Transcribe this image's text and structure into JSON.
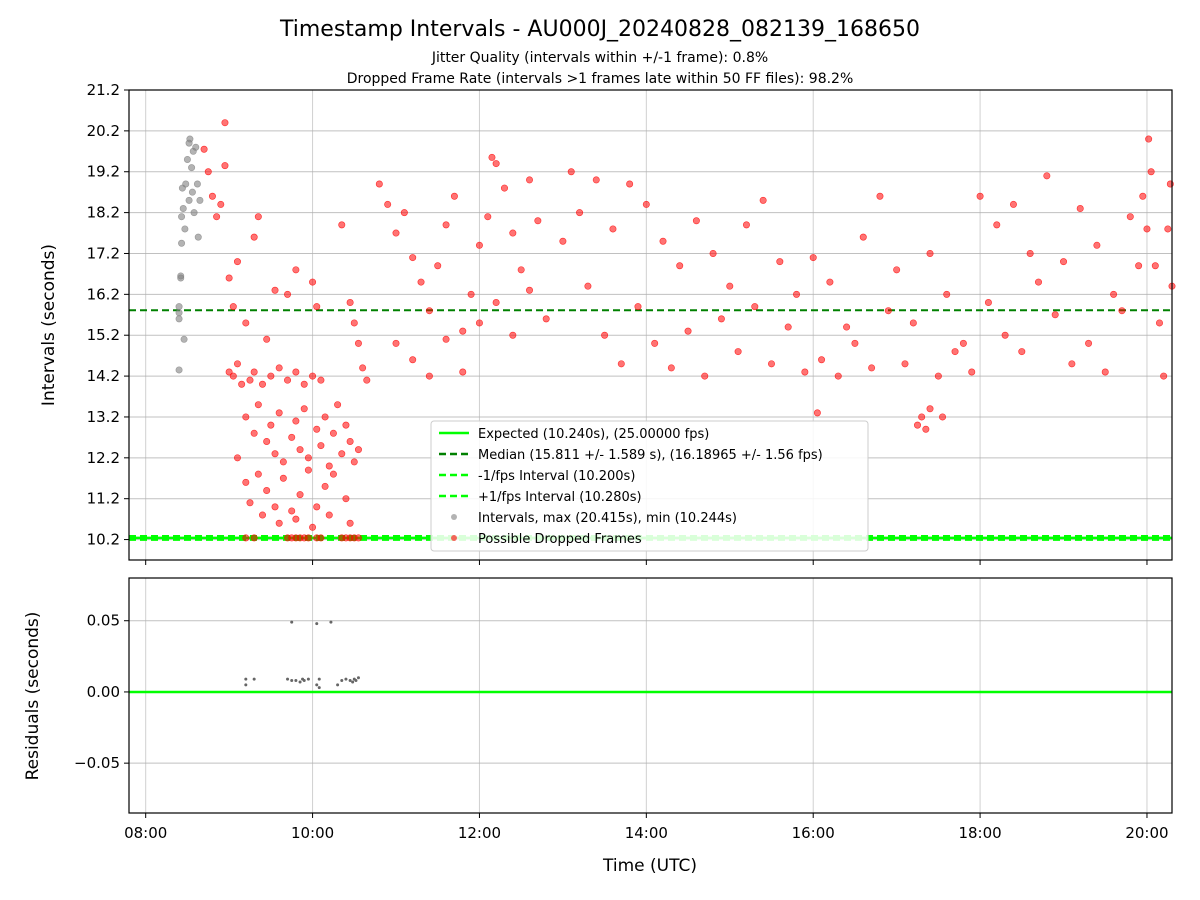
{
  "colors": {
    "expected": "#00ff00",
    "median": "#008000",
    "fps_bounds": "#00ff00",
    "intervals": "#808080",
    "dropped": "#ff0000",
    "grid": "#b0b0b0",
    "residual_points": "#666666"
  },
  "chart_data": [
    {
      "type": "scatter",
      "title": "Timestamp Intervals - AU000J_20240828_082139_168650",
      "subtitle_1": "Jitter Quality (intervals within +/-1 frame): 0.8%",
      "subtitle_2": "Dropped Frame Rate (intervals >1 frames late within 50 FF files): 98.2%",
      "xlabel": "",
      "ylabel": "Intervals (seconds)",
      "xlim_hours": [
        7.8,
        20.3
      ],
      "ylim": [
        9.7,
        21.2
      ],
      "y_ticks": [
        "10.2",
        "11.2",
        "12.2",
        "13.2",
        "14.2",
        "15.2",
        "16.2",
        "17.2",
        "18.2",
        "19.2",
        "20.2",
        "21.2"
      ],
      "grid": true,
      "legend_position": "lower-center",
      "legend": [
        "Expected (10.240s), (25.00000 fps)",
        "Median (15.811 +/- 1.589 s), (16.18965 +/- 1.56 fps)",
        "-1/fps Interval (10.200s)",
        "+1/fps Interval (10.280s)",
        "Intervals, max (20.415s), min (10.244s)",
        "Possible Dropped Frames"
      ],
      "lines": {
        "expected": 10.24,
        "median": 15.811,
        "minus_fps": 10.2,
        "plus_fps": 10.28
      },
      "series": [
        {
          "name": "Intervals, max (20.415s), min (10.244s)",
          "points": [
            [
              8.4,
              14.35
            ],
            [
              8.4,
              15.6
            ],
            [
              8.4,
              15.75
            ],
            [
              8.4,
              15.9
            ],
            [
              8.42,
              16.6
            ],
            [
              8.42,
              16.65
            ],
            [
              8.43,
              17.45
            ],
            [
              8.43,
              18.1
            ],
            [
              8.44,
              18.8
            ],
            [
              8.45,
              18.3
            ],
            [
              8.46,
              15.1
            ],
            [
              8.47,
              17.8
            ],
            [
              8.48,
              18.9
            ],
            [
              8.5,
              19.5
            ],
            [
              8.52,
              19.9
            ],
            [
              8.52,
              18.5
            ],
            [
              8.53,
              20.0
            ],
            [
              8.55,
              19.3
            ],
            [
              8.56,
              18.7
            ],
            [
              8.57,
              19.7
            ],
            [
              8.58,
              18.2
            ],
            [
              8.6,
              19.8
            ],
            [
              8.62,
              18.9
            ],
            [
              8.63,
              17.6
            ],
            [
              8.65,
              18.5
            ]
          ]
        },
        {
          "name": "Possible Dropped Frames",
          "points": [
            [
              8.95,
              20.4
            ],
            [
              8.7,
              19.75
            ],
            [
              8.75,
              19.2
            ],
            [
              8.8,
              18.6
            ],
            [
              8.85,
              18.1
            ],
            [
              8.9,
              18.4
            ],
            [
              8.95,
              19.35
            ],
            [
              9.0,
              16.6
            ],
            [
              9.05,
              15.9
            ],
            [
              9.1,
              17.0
            ],
            [
              9.2,
              15.5
            ],
            [
              9.3,
              17.6
            ],
            [
              9.35,
              18.1
            ],
            [
              9.45,
              15.1
            ],
            [
              9.55,
              16.3
            ],
            [
              9.7,
              16.2
            ],
            [
              9.8,
              16.8
            ],
            [
              10.0,
              16.5
            ],
            [
              10.05,
              15.9
            ],
            [
              10.35,
              17.9
            ],
            [
              10.45,
              16.0
            ],
            [
              10.5,
              15.5
            ],
            [
              10.55,
              15.0
            ],
            [
              10.6,
              14.4
            ],
            [
              10.65,
              14.1
            ],
            [
              9.0,
              14.3
            ],
            [
              9.05,
              14.2
            ],
            [
              9.1,
              14.5
            ],
            [
              9.15,
              14.0
            ],
            [
              9.25,
              14.1
            ],
            [
              9.3,
              14.3
            ],
            [
              9.4,
              14.0
            ],
            [
              9.5,
              14.2
            ],
            [
              9.6,
              14.4
            ],
            [
              9.7,
              14.1
            ],
            [
              9.8,
              14.3
            ],
            [
              9.9,
              14.0
            ],
            [
              10.0,
              14.2
            ],
            [
              10.1,
              14.1
            ],
            [
              9.2,
              13.2
            ],
            [
              9.3,
              12.8
            ],
            [
              9.35,
              13.5
            ],
            [
              9.45,
              12.6
            ],
            [
              9.5,
              13.0
            ],
            [
              9.55,
              12.3
            ],
            [
              9.6,
              13.3
            ],
            [
              9.65,
              12.1
            ],
            [
              9.75,
              12.7
            ],
            [
              9.8,
              13.1
            ],
            [
              9.85,
              12.4
            ],
            [
              9.9,
              13.4
            ],
            [
              9.95,
              12.2
            ],
            [
              10.05,
              12.9
            ],
            [
              10.1,
              12.5
            ],
            [
              10.15,
              13.2
            ],
            [
              10.2,
              12.0
            ],
            [
              10.25,
              12.8
            ],
            [
              10.3,
              13.5
            ],
            [
              10.35,
              12.3
            ],
            [
              10.4,
              13.0
            ],
            [
              10.45,
              12.6
            ],
            [
              10.5,
              12.1
            ],
            [
              10.55,
              12.4
            ],
            [
              9.1,
              12.2
            ],
            [
              9.2,
              11.6
            ],
            [
              9.25,
              11.1
            ],
            [
              9.35,
              11.8
            ],
            [
              9.45,
              11.4
            ],
            [
              9.55,
              11.0
            ],
            [
              9.65,
              11.7
            ],
            [
              9.75,
              10.9
            ],
            [
              9.85,
              11.3
            ],
            [
              9.95,
              11.9
            ],
            [
              10.05,
              11.0
            ],
            [
              10.15,
              11.5
            ],
            [
              10.25,
              11.8
            ],
            [
              10.4,
              11.2
            ],
            [
              9.4,
              10.8
            ],
            [
              9.6,
              10.6
            ],
            [
              9.8,
              10.7
            ],
            [
              10.0,
              10.5
            ],
            [
              10.2,
              10.8
            ],
            [
              10.45,
              10.6
            ],
            [
              9.2,
              10.24
            ],
            [
              9.3,
              10.24
            ],
            [
              9.7,
              10.24
            ],
            [
              9.75,
              10.24
            ],
            [
              9.8,
              10.24
            ],
            [
              9.85,
              10.24
            ],
            [
              9.9,
              10.24
            ],
            [
              9.95,
              10.24
            ],
            [
              10.05,
              10.24
            ],
            [
              10.1,
              10.24
            ],
            [
              10.35,
              10.24
            ],
            [
              10.4,
              10.24
            ],
            [
              10.45,
              10.24
            ],
            [
              10.5,
              10.24
            ],
            [
              10.55,
              10.24
            ],
            [
              10.8,
              18.9
            ],
            [
              10.9,
              18.4
            ],
            [
              11.0,
              17.7
            ],
            [
              11.1,
              18.2
            ],
            [
              11.2,
              17.1
            ],
            [
              11.3,
              16.5
            ],
            [
              11.4,
              15.8
            ],
            [
              11.5,
              16.9
            ],
            [
              11.6,
              17.9
            ],
            [
              11.7,
              18.6
            ],
            [
              11.8,
              15.3
            ],
            [
              11.9,
              16.2
            ],
            [
              12.0,
              17.4
            ],
            [
              12.1,
              18.1
            ],
            [
              12.15,
              19.55
            ],
            [
              12.2,
              19.4
            ],
            [
              12.3,
              18.8
            ],
            [
              12.4,
              17.7
            ],
            [
              12.5,
              16.8
            ],
            [
              12.6,
              19.0
            ],
            [
              12.7,
              18.0
            ],
            [
              11.0,
              15.0
            ],
            [
              11.2,
              14.6
            ],
            [
              11.4,
              14.2
            ],
            [
              11.6,
              15.1
            ],
            [
              11.8,
              14.3
            ],
            [
              12.0,
              15.5
            ],
            [
              12.2,
              16.0
            ],
            [
              12.4,
              15.2
            ],
            [
              12.6,
              16.3
            ],
            [
              12.8,
              15.6
            ],
            [
              13.0,
              17.5
            ],
            [
              13.2,
              18.2
            ],
            [
              13.4,
              19.0
            ],
            [
              13.6,
              17.8
            ],
            [
              13.8,
              18.9
            ],
            [
              13.1,
              19.2
            ],
            [
              13.3,
              16.4
            ],
            [
              13.5,
              15.2
            ],
            [
              13.7,
              14.5
            ],
            [
              13.9,
              15.9
            ],
            [
              14.0,
              18.4
            ],
            [
              14.2,
              17.5
            ],
            [
              14.4,
              16.9
            ],
            [
              14.6,
              18.0
            ],
            [
              14.8,
              17.2
            ],
            [
              15.0,
              16.4
            ],
            [
              15.2,
              17.9
            ],
            [
              15.4,
              18.5
            ],
            [
              15.6,
              17.0
            ],
            [
              15.8,
              16.2
            ],
            [
              14.1,
              15.0
            ],
            [
              14.3,
              14.4
            ],
            [
              14.5,
              15.3
            ],
            [
              14.7,
              14.2
            ],
            [
              14.9,
              15.6
            ],
            [
              15.1,
              14.8
            ],
            [
              15.3,
              15.9
            ],
            [
              15.5,
              14.5
            ],
            [
              15.7,
              15.4
            ],
            [
              15.9,
              14.3
            ],
            [
              16.0,
              17.1
            ],
            [
              16.2,
              16.5
            ],
            [
              16.4,
              15.4
            ],
            [
              16.6,
              17.6
            ],
            [
              16.8,
              18.6
            ],
            [
              16.1,
              14.6
            ],
            [
              16.3,
              14.2
            ],
            [
              16.5,
              15.0
            ],
            [
              16.7,
              14.4
            ],
            [
              16.9,
              15.8
            ],
            [
              16.05,
              13.3
            ],
            [
              17.0,
              16.8
            ],
            [
              17.2,
              15.5
            ],
            [
              17.4,
              17.2
            ],
            [
              17.6,
              16.2
            ],
            [
              17.8,
              15.0
            ],
            [
              17.1,
              14.5
            ],
            [
              17.3,
              13.2
            ],
            [
              17.25,
              13.0
            ],
            [
              17.4,
              13.4
            ],
            [
              17.5,
              14.2
            ],
            [
              17.7,
              14.8
            ],
            [
              17.9,
              14.3
            ],
            [
              17.35,
              12.9
            ],
            [
              17.55,
              13.2
            ],
            [
              18.0,
              18.6
            ],
            [
              18.2,
              17.9
            ],
            [
              18.4,
              18.4
            ],
            [
              18.6,
              17.2
            ],
            [
              18.8,
              19.1
            ],
            [
              18.1,
              16.0
            ],
            [
              18.3,
              15.2
            ],
            [
              18.5,
              14.8
            ],
            [
              18.7,
              16.5
            ],
            [
              18.9,
              15.7
            ],
            [
              19.0,
              17.0
            ],
            [
              19.2,
              18.3
            ],
            [
              19.4,
              17.4
            ],
            [
              19.6,
              16.2
            ],
            [
              19.8,
              18.1
            ],
            [
              19.1,
              14.5
            ],
            [
              19.3,
              15.0
            ],
            [
              19.5,
              14.3
            ],
            [
              19.7,
              15.8
            ],
            [
              19.9,
              16.9
            ],
            [
              19.95,
              18.6
            ],
            [
              20.0,
              17.8
            ],
            [
              20.02,
              20.0
            ],
            [
              20.05,
              19.2
            ],
            [
              20.1,
              16.9
            ],
            [
              20.15,
              15.5
            ],
            [
              20.2,
              14.2
            ],
            [
              20.25,
              17.8
            ],
            [
              20.28,
              18.9
            ],
            [
              20.3,
              16.4
            ]
          ]
        }
      ]
    },
    {
      "type": "scatter",
      "xlabel": "Time (UTC)",
      "ylabel": "Residuals (seconds)",
      "xlim_hours": [
        7.8,
        20.3
      ],
      "ylim": [
        -0.085,
        0.08
      ],
      "x_ticks": [
        "08:00",
        "10:00",
        "12:00",
        "14:00",
        "16:00",
        "18:00",
        "20:00"
      ],
      "y_ticks": [
        "0.05",
        "0.00",
        "−0.05"
      ],
      "grid": true,
      "zero_line": 0.0,
      "points": [
        [
          9.75,
          0.049
        ],
        [
          10.05,
          0.048
        ],
        [
          10.22,
          0.049
        ],
        [
          9.2,
          0.009
        ],
        [
          9.2,
          0.005
        ],
        [
          9.3,
          0.009
        ],
        [
          9.7,
          0.009
        ],
        [
          9.75,
          0.008
        ],
        [
          9.8,
          0.008
        ],
        [
          9.85,
          0.007
        ],
        [
          9.88,
          0.009
        ],
        [
          9.9,
          0.008
        ],
        [
          9.95,
          0.009
        ],
        [
          10.05,
          0.005
        ],
        [
          10.08,
          0.009
        ],
        [
          10.08,
          0.003
        ],
        [
          10.3,
          0.005
        ],
        [
          10.35,
          0.008
        ],
        [
          10.4,
          0.009
        ],
        [
          10.45,
          0.008
        ],
        [
          10.48,
          0.007
        ],
        [
          10.5,
          0.009
        ],
        [
          10.52,
          0.008
        ],
        [
          10.55,
          0.01
        ]
      ]
    }
  ]
}
